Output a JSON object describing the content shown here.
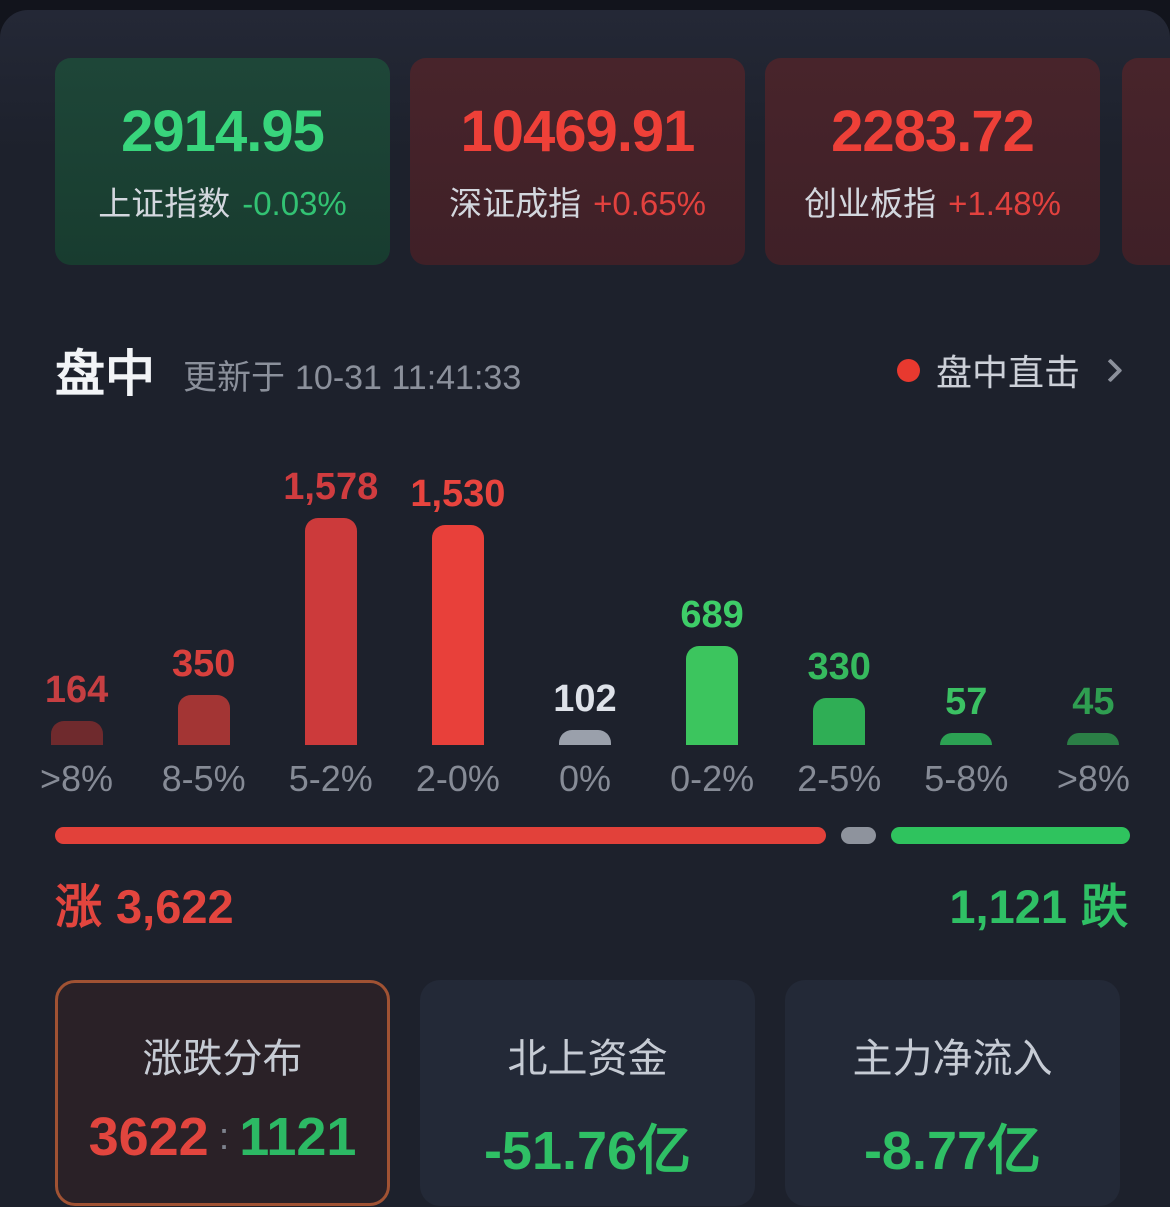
{
  "indices": [
    {
      "name": "上证指数",
      "value": "2914.95",
      "change": "-0.03%",
      "direction": "down"
    },
    {
      "name": "深证成指",
      "value": "10469.91",
      "change": "+0.65%",
      "direction": "up"
    },
    {
      "name": "创业板指",
      "value": "2283.72",
      "change": "+1.48%",
      "direction": "up"
    }
  ],
  "section": {
    "title": "盘中",
    "updated_prefix": "更新于",
    "updated_time": "10-31 11:41:33",
    "live_link": "盘中直击"
  },
  "chart_data": {
    "type": "bar",
    "title": "涨跌分布",
    "categories": [
      ">8%",
      "8-5%",
      "5-2%",
      "2-0%",
      "0%",
      "0-2%",
      "2-5%",
      "5-8%",
      ">8%"
    ],
    "values": [
      164,
      350,
      1578,
      1530,
      102,
      689,
      330,
      57,
      45
    ],
    "value_labels": [
      "164",
      "350",
      "1,578",
      "1,530",
      "102",
      "689",
      "330",
      "57",
      "45"
    ],
    "groups": [
      "up",
      "up",
      "up",
      "up",
      "flat",
      "down",
      "down",
      "down",
      "down"
    ],
    "bar_colors": [
      "#6f2a2d",
      "#a33534",
      "#cc3a3b",
      "#e8403a",
      "#9aa0ab",
      "#3cc55e",
      "#2fae55",
      "#2ca153",
      "#2b7f46"
    ],
    "label_colors": [
      "#c63f42",
      "#d8403d",
      "#d03c3f",
      "#e8443e",
      "#dee2e9",
      "#3ecd68",
      "#36ba5e",
      "#3bc163",
      "#2f9e51"
    ],
    "xlabel": "",
    "ylabel": "",
    "ylim": [
      0,
      1578
    ],
    "grid": false,
    "legend": false
  },
  "breadth": {
    "up_label": "涨",
    "up_value": "3,622",
    "up_count": 3622,
    "flat_count": 102,
    "down_value": "1,121",
    "down_label": "跌",
    "down_count": 1121
  },
  "summary": {
    "cards": [
      {
        "title": "涨跌分布",
        "value_up": "3622",
        "sep": ":",
        "value_down": "1121",
        "selected": true
      },
      {
        "title": "北上资金",
        "value": "-51.76亿"
      },
      {
        "title": "主力净流入",
        "value": "-8.77亿"
      }
    ]
  },
  "colors": {
    "up_red": "#e2453e",
    "down_green": "#2fc065",
    "flat_gray": "#9aa0ab",
    "live_dot_red": "#e8392f",
    "selected_border_orange": "#a05233",
    "index_up_bg": "#45232a",
    "index_down_bg": "#1d4236",
    "page_bg": "#1d212c"
  }
}
